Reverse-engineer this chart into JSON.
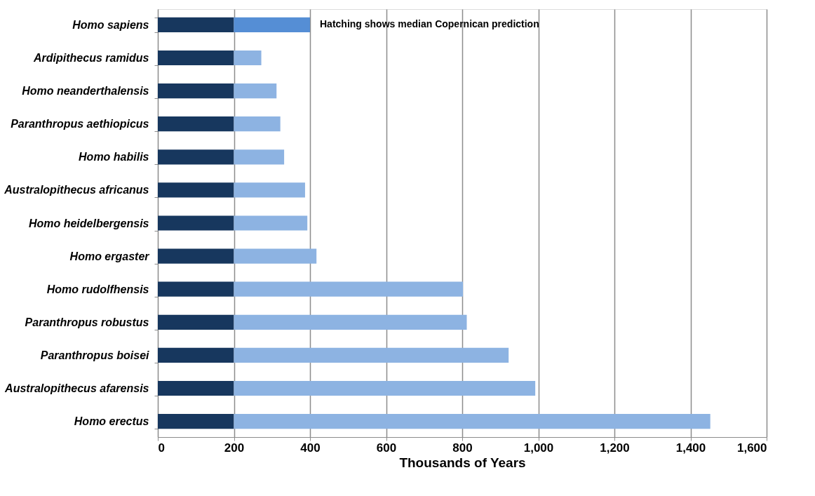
{
  "chart_data": {
    "type": "bar",
    "orientation": "horizontal",
    "stacked": true,
    "xlabel": "Thousands of Years",
    "categories": [
      "Homo sapiens",
      "Ardipithecus ramidus",
      "Homo neanderthalensis",
      "Paranthropus aethiopicus",
      "Homo habilis",
      "Australopithecus africanus",
      "Homo heidelbergensis",
      "Homo ergaster",
      "Homo rudolfhensis",
      "Paranthropus robustus",
      "Paranthropus boisei",
      "Australopithecus afarensis",
      "Homo erectus"
    ],
    "series": [
      {
        "color": "#17375e",
        "values": [
          200,
          200,
          200,
          200,
          200,
          200,
          200,
          200,
          200,
          200,
          200,
          200,
          200
        ]
      },
      {
        "colors": [
          "#558ed5",
          "#8db3e2",
          "#8db3e2",
          "#8db3e2",
          "#8db3e2",
          "#8db3e2",
          "#8db3e2",
          "#8db3e2",
          "#8db3e2",
          "#8db3e2",
          "#8db3e2",
          "#8db3e2",
          "#8db3e2"
        ],
        "values": [
          200,
          72,
          112,
          122,
          132,
          187,
          193,
          217,
          602,
          612,
          722,
          792,
          1252
        ]
      }
    ],
    "xlim": [
      0,
      1600
    ],
    "xticks": [
      0,
      200,
      400,
      600,
      800,
      {
        "value": 1000,
        "label": "1,000"
      },
      {
        "value": 1200,
        "label": "1,200"
      },
      {
        "value": 1400,
        "label": "1,400"
      },
      {
        "value": 1600,
        "label": "1,600"
      }
    ],
    "grid": "x",
    "annotations": [
      {
        "text": "Hatching shows median Copernican prediction",
        "x": 400,
        "y": "Homo sapiens"
      }
    ]
  }
}
